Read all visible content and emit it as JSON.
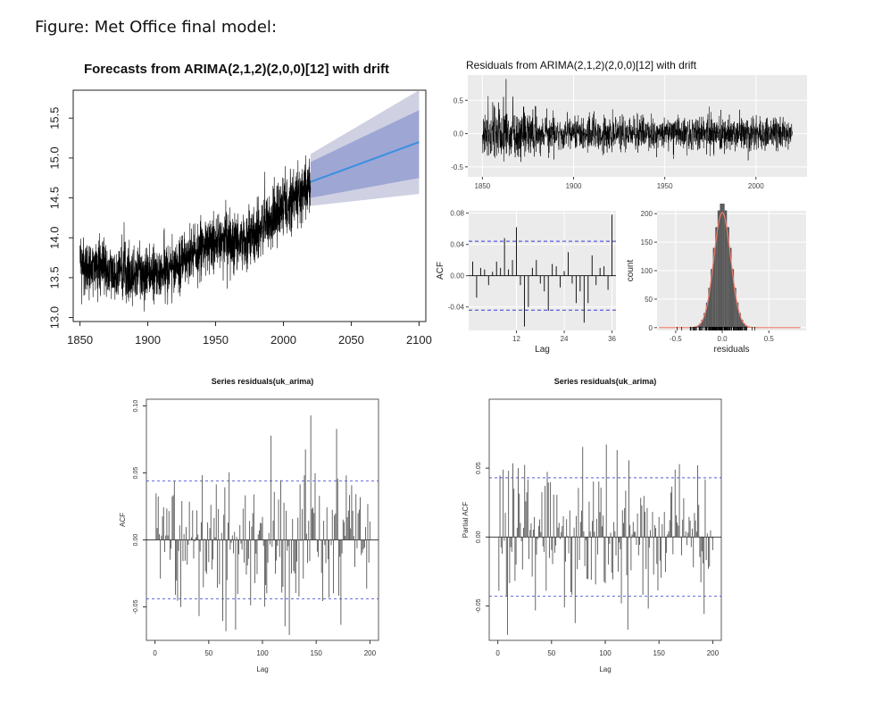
{
  "caption": "Figure: Met Office final model:",
  "colors": {
    "forecast_line": "#3a8fe0",
    "pi80": "#9ea6d4",
    "pi95": "#cfd0e2",
    "ggplot_panel": "#ebebeb",
    "ci_line": "#3b3bdd",
    "hist_fill": "#595959",
    "density_curve": "#f07a68"
  },
  "chart_data": [
    {
      "id": "forecast",
      "type": "line",
      "title": "Forecasts from ARIMA(2,1,2)(2,0,0)[12] with drift",
      "xlabel": "",
      "ylabel": "",
      "xlim": [
        1845,
        2105
      ],
      "ylim": [
        12.95,
        15.85
      ],
      "x_ticks": [
        1850,
        1900,
        1950,
        2000,
        2050,
        2100
      ],
      "y_ticks": [
        13.0,
        13.5,
        14.0,
        14.5,
        15.0,
        15.5
      ],
      "x_tick_labels": [
        "1850",
        "1900",
        "1950",
        "2000",
        "2050",
        "2100"
      ],
      "y_tick_labels": [
        "13.0",
        "13.5",
        "14.0",
        "14.5",
        "15.0",
        "15.5"
      ],
      "history_trend": [
        [
          1850,
          13.65
        ],
        [
          1870,
          13.6
        ],
        [
          1890,
          13.55
        ],
        [
          1910,
          13.55
        ],
        [
          1930,
          13.75
        ],
        [
          1950,
          13.95
        ],
        [
          1970,
          13.95
        ],
        [
          1990,
          14.2
        ],
        [
          2010,
          14.5
        ],
        [
          2020,
          14.7
        ]
      ],
      "history_noise_sd": 0.18,
      "forecast": {
        "x": [
          2020,
          2100
        ],
        "mean": [
          14.7,
          15.2
        ],
        "lo80": [
          14.5,
          14.75
        ],
        "hi80": [
          14.95,
          15.6
        ],
        "lo95": [
          14.4,
          14.55
        ],
        "hi95": [
          15.05,
          15.85
        ]
      }
    },
    {
      "id": "resid-ts",
      "type": "line",
      "title": "Residuals from ARIMA(2,1,2)(2,0,0)[12] with drift",
      "xlim": [
        1842,
        2028
      ],
      "ylim": [
        -0.65,
        0.88
      ],
      "x_ticks": [
        1850,
        1900,
        1950,
        2000
      ],
      "y_ticks": [
        -0.5,
        0.0,
        0.5
      ],
      "x_tick_labels": [
        "1850",
        "1900",
        "1950",
        "2000"
      ],
      "y_tick_labels": [
        "-0.5",
        "0.0",
        "0.5"
      ],
      "x_range": [
        1850,
        2020
      ],
      "noise_sd": 0.12
    },
    {
      "id": "acf-gg",
      "type": "bar",
      "xlabel": "Lag",
      "ylabel": "ACF",
      "xlim": [
        0,
        37
      ],
      "ylim": [
        -0.07,
        0.083
      ],
      "x_ticks": [
        12,
        24,
        36
      ],
      "y_ticks": [
        -0.04,
        0.0,
        0.04,
        0.08
      ],
      "x_tick_labels": [
        "12",
        "24",
        "36"
      ],
      "y_tick_labels": [
        "-0.04",
        "0.00",
        "0.04",
        "0.08"
      ],
      "ci": 0.044,
      "lags": [
        1,
        2,
        3,
        4,
        5,
        6,
        7,
        8,
        9,
        10,
        11,
        12,
        13,
        14,
        15,
        16,
        17,
        18,
        19,
        20,
        21,
        22,
        23,
        24,
        25,
        26,
        27,
        28,
        29,
        30,
        31,
        32,
        33,
        34,
        35,
        36
      ],
      "values": [
        0.018,
        -0.028,
        0.01,
        0.008,
        -0.012,
        0.005,
        0.018,
        0.01,
        0.048,
        0.008,
        0.02,
        0.062,
        -0.012,
        -0.065,
        -0.04,
        0.01,
        0.02,
        -0.01,
        -0.02,
        -0.045,
        0.015,
        0.012,
        -0.015,
        0.006,
        0.03,
        -0.01,
        -0.035,
        -0.02,
        -0.06,
        -0.035,
        0.026,
        -0.012,
        0.01,
        0.012,
        -0.018,
        0.078
      ]
    },
    {
      "id": "hist",
      "type": "bar",
      "xlabel": "residuals",
      "ylabel": "count",
      "xlim": [
        -0.7,
        0.9
      ],
      "ylim": [
        -5,
        205
      ],
      "x_ticks": [
        -0.5,
        0.0,
        0.5
      ],
      "y_ticks": [
        0,
        50,
        100,
        150,
        200
      ],
      "x_tick_labels": [
        "-0.5",
        "0.0",
        "0.5"
      ],
      "y_tick_labels": [
        "0",
        "50",
        "100",
        "150",
        "200"
      ],
      "bin_width": 0.025,
      "mean": 0.0,
      "sd": 0.12,
      "n": 2000
    },
    {
      "id": "acf-base",
      "type": "bar",
      "title": "Series  residuals(uk_arima)",
      "xlabel": "Lag",
      "ylabel": "ACF",
      "xlim": [
        -8,
        208
      ],
      "ylim": [
        -0.075,
        0.105
      ],
      "x_ticks": [
        0,
        50,
        100,
        150,
        200
      ],
      "y_ticks": [
        -0.05,
        0.0,
        0.05,
        0.1
      ],
      "x_tick_labels": [
        "0",
        "50",
        "100",
        "150",
        "200"
      ],
      "y_tick_labels": [
        "-0.05",
        "0.00",
        "0.05",
        "0.10"
      ],
      "ci": 0.044,
      "n_lags": 200,
      "seed": 7
    },
    {
      "id": "pacf-base",
      "type": "bar",
      "title": "Series  residuals(uk_arima)",
      "xlabel": "Lag",
      "ylabel": "Partial ACF",
      "xlim": [
        -8,
        208
      ],
      "ylim": [
        -0.075,
        0.1
      ],
      "x_ticks": [
        0,
        50,
        100,
        150,
        200
      ],
      "y_ticks": [
        -0.05,
        0.0,
        0.05
      ],
      "x_tick_labels": [
        "0",
        "50",
        "100",
        "150",
        "200"
      ],
      "y_tick_labels": [
        "-0.05",
        "0.00",
        "0.05"
      ],
      "ci": 0.043,
      "n_lags": 200,
      "seed": 13
    }
  ]
}
